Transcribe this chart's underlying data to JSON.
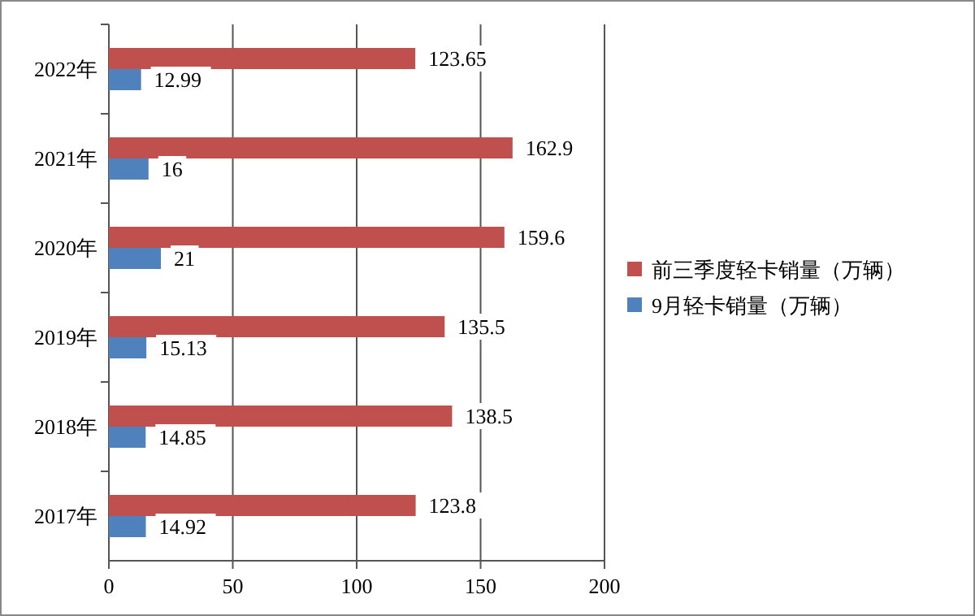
{
  "chart_data": {
    "type": "bar",
    "orientation": "horizontal",
    "categories": [
      "2022年",
      "2021年",
      "2020年",
      "2019年",
      "2018年",
      "2017年"
    ],
    "series": [
      {
        "name": "前三季度轻卡销量（万辆）",
        "color": "#c0504d",
        "values": [
          123.65,
          162.9,
          159.6,
          135.5,
          138.5,
          123.8
        ]
      },
      {
        "name": "9月轻卡销量（万辆）",
        "color": "#4f81bd",
        "values": [
          12.99,
          16,
          21,
          15.13,
          14.85,
          14.92
        ]
      }
    ],
    "xlim": [
      0,
      200
    ],
    "xticks": [
      0,
      50,
      100,
      150,
      200
    ],
    "grid": "x",
    "legend": "right",
    "data_labels": true
  }
}
